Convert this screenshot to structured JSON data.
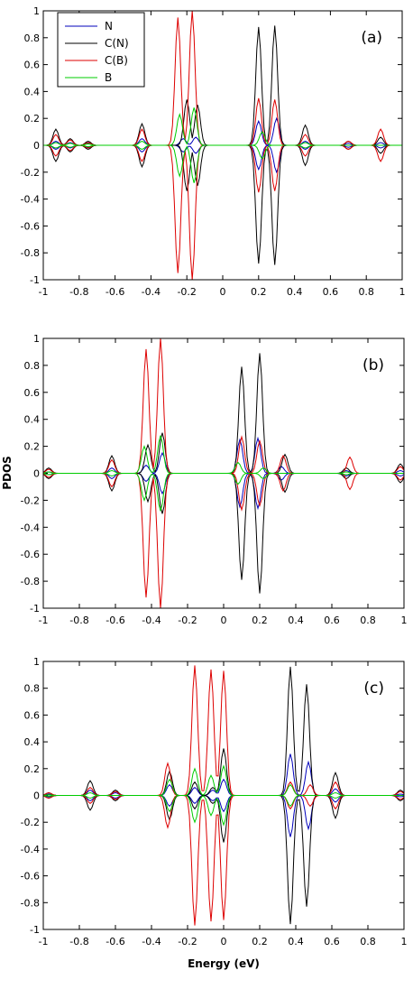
{
  "figure": {
    "ylabel": "PDOS",
    "xlabel": "Energy (eV)"
  },
  "chart_data": [
    {
      "type": "line",
      "panel": "(a)",
      "xlim": [
        -1,
        1
      ],
      "ylim": [
        -1,
        1
      ],
      "xticks": [
        "-1",
        "-0.8",
        "-0.6",
        "-0.4",
        "-0.2",
        "0",
        "0.2",
        "0.4",
        "0.6",
        "0.8",
        "1"
      ],
      "yticks": [
        "1",
        "0.8",
        "0.6",
        "0.4",
        "0.2",
        "0",
        "-0.2",
        "-0.4",
        "-0.6",
        "-0.8",
        "-1"
      ],
      "legend": {
        "position": "top-left",
        "entries": [
          "N",
          "C(N)",
          "C(B)",
          "B"
        ]
      },
      "series": [
        {
          "name": "N",
          "color": "#0000bb",
          "peaks": [
            [
              -0.93,
              0.03
            ],
            [
              -0.85,
              0.02
            ],
            [
              -0.75,
              0.015
            ],
            [
              -0.45,
              0.05
            ],
            [
              -0.22,
              0.05
            ],
            [
              -0.15,
              0.06
            ],
            [
              0.2,
              0.18
            ],
            [
              0.3,
              0.2
            ],
            [
              0.46,
              0.03
            ],
            [
              0.7,
              0.015
            ],
            [
              0.88,
              0.02
            ]
          ]
        },
        {
          "name": "C(N)",
          "color": "#000000",
          "peaks": [
            [
              -0.93,
              0.12
            ],
            [
              -0.85,
              0.05
            ],
            [
              -0.75,
              0.03
            ],
            [
              -0.45,
              0.16
            ],
            [
              -0.2,
              0.34
            ],
            [
              -0.14,
              0.3
            ],
            [
              0.2,
              0.88
            ],
            [
              0.29,
              0.89
            ],
            [
              0.46,
              0.15
            ],
            [
              0.7,
              0.03
            ],
            [
              0.88,
              0.06
            ]
          ]
        },
        {
          "name": "C(B)",
          "color": "#dd0000",
          "peaks": [
            [
              -0.93,
              0.08
            ],
            [
              -0.85,
              0.04
            ],
            [
              -0.75,
              0.02
            ],
            [
              -0.45,
              0.12
            ],
            [
              -0.25,
              0.95
            ],
            [
              -0.17,
              1.0
            ],
            [
              0.2,
              0.35
            ],
            [
              0.29,
              0.34
            ],
            [
              0.46,
              0.08
            ],
            [
              0.7,
              0.03
            ],
            [
              0.88,
              0.12
            ]
          ]
        },
        {
          "name": "B",
          "color": "#00cc00",
          "peaks": [
            [
              -0.93,
              0.02
            ],
            [
              -0.85,
              0.015
            ],
            [
              -0.75,
              0.01
            ],
            [
              -0.45,
              0.03
            ],
            [
              -0.24,
              0.23
            ],
            [
              -0.16,
              0.28
            ],
            [
              0.22,
              0.1
            ],
            [
              0.46,
              0.02
            ]
          ]
        }
      ]
    },
    {
      "type": "line",
      "panel": "(b)",
      "xlim": [
        -1,
        1
      ],
      "ylim": [
        -1,
        1
      ],
      "xticks": [
        "-1",
        "-0.8",
        "-0.6",
        "-0.4",
        "-0.2",
        "0",
        "0.2",
        "0.4",
        "0.6",
        "0.8",
        "1"
      ],
      "yticks": [
        "1",
        "0.8",
        "0.6",
        "0.4",
        "0.2",
        "0",
        "-0.2",
        "-0.4",
        "-0.6",
        "-0.8",
        "-1"
      ],
      "series": [
        {
          "name": "N",
          "color": "#0000bb",
          "peaks": [
            [
              -0.97,
              0.01
            ],
            [
              -0.62,
              0.04
            ],
            [
              -0.43,
              0.06
            ],
            [
              -0.34,
              0.15
            ],
            [
              0.09,
              0.25
            ],
            [
              0.19,
              0.26
            ],
            [
              0.32,
              0.05
            ],
            [
              0.68,
              0.02
            ],
            [
              0.98,
              0.02
            ]
          ]
        },
        {
          "name": "C(N)",
          "color": "#000000",
          "peaks": [
            [
              -0.97,
              0.04
            ],
            [
              -0.62,
              0.13
            ],
            [
              -0.42,
              0.21
            ],
            [
              -0.34,
              0.3
            ],
            [
              0.1,
              0.79
            ],
            [
              0.2,
              0.89
            ],
            [
              0.34,
              0.14
            ],
            [
              0.68,
              0.04
            ],
            [
              0.98,
              0.07
            ]
          ]
        },
        {
          "name": "C(B)",
          "color": "#dd0000",
          "peaks": [
            [
              -0.97,
              0.03
            ],
            [
              -0.62,
              0.1
            ],
            [
              -0.43,
              0.92
            ],
            [
              -0.35,
              1.0
            ],
            [
              0.1,
              0.27
            ],
            [
              0.2,
              0.24
            ],
            [
              0.33,
              0.13
            ],
            [
              0.7,
              0.12
            ],
            [
              0.98,
              0.05
            ]
          ]
        },
        {
          "name": "B",
          "color": "#00cc00",
          "peaks": [
            [
              -0.97,
              0.01
            ],
            [
              -0.62,
              0.02
            ],
            [
              -0.44,
              0.2
            ],
            [
              -0.35,
              0.28
            ],
            [
              0.08,
              0.08
            ],
            [
              0.22,
              0.04
            ],
            [
              0.68,
              0.01
            ]
          ]
        }
      ]
    },
    {
      "type": "line",
      "panel": "(c)",
      "xlim": [
        -1,
        1
      ],
      "ylim": [
        -1,
        1
      ],
      "xticks": [
        "-1",
        "-0.8",
        "-0.6",
        "-0.4",
        "-0.2",
        "0",
        "0.2",
        "0.4",
        "0.6",
        "0.8",
        "1"
      ],
      "yticks": [
        "1",
        "0.8",
        "0.6",
        "0.4",
        "0.2",
        "0",
        "-0.2",
        "-0.4",
        "-0.6",
        "-0.8",
        "-1"
      ],
      "series": [
        {
          "name": "N",
          "color": "#0000bb",
          "peaks": [
            [
              -0.97,
              0.01
            ],
            [
              -0.74,
              0.04
            ],
            [
              -0.6,
              0.02
            ],
            [
              -0.3,
              0.08
            ],
            [
              -0.16,
              0.06
            ],
            [
              -0.06,
              0.04
            ],
            [
              0.0,
              0.12
            ],
            [
              0.37,
              0.31
            ],
            [
              0.47,
              0.25
            ],
            [
              0.62,
              0.05
            ],
            [
              0.98,
              0.01
            ]
          ]
        },
        {
          "name": "C(N)",
          "color": "#000000",
          "peaks": [
            [
              -0.97,
              0.02
            ],
            [
              -0.74,
              0.11
            ],
            [
              -0.6,
              0.04
            ],
            [
              -0.3,
              0.18
            ],
            [
              -0.16,
              0.1
            ],
            [
              -0.06,
              0.06
            ],
            [
              0.0,
              0.35
            ],
            [
              0.37,
              0.96
            ],
            [
              0.46,
              0.83
            ],
            [
              0.62,
              0.17
            ],
            [
              0.98,
              0.04
            ]
          ]
        },
        {
          "name": "C(B)",
          "color": "#dd0000",
          "peaks": [
            [
              -0.97,
              0.02
            ],
            [
              -0.74,
              0.06
            ],
            [
              -0.6,
              0.03
            ],
            [
              -0.31,
              0.24
            ],
            [
              -0.16,
              0.97
            ],
            [
              -0.07,
              0.94
            ],
            [
              0.0,
              0.93
            ],
            [
              0.37,
              0.1
            ],
            [
              0.48,
              0.08
            ],
            [
              0.62,
              0.1
            ],
            [
              0.98,
              0.03
            ]
          ]
        },
        {
          "name": "B",
          "color": "#00cc00",
          "peaks": [
            [
              -0.97,
              0.005
            ],
            [
              -0.74,
              0.02
            ],
            [
              -0.3,
              0.12
            ],
            [
              -0.16,
              0.2
            ],
            [
              -0.07,
              0.15
            ],
            [
              0.0,
              0.22
            ],
            [
              0.37,
              0.08
            ],
            [
              0.62,
              0.02
            ]
          ]
        }
      ]
    }
  ]
}
